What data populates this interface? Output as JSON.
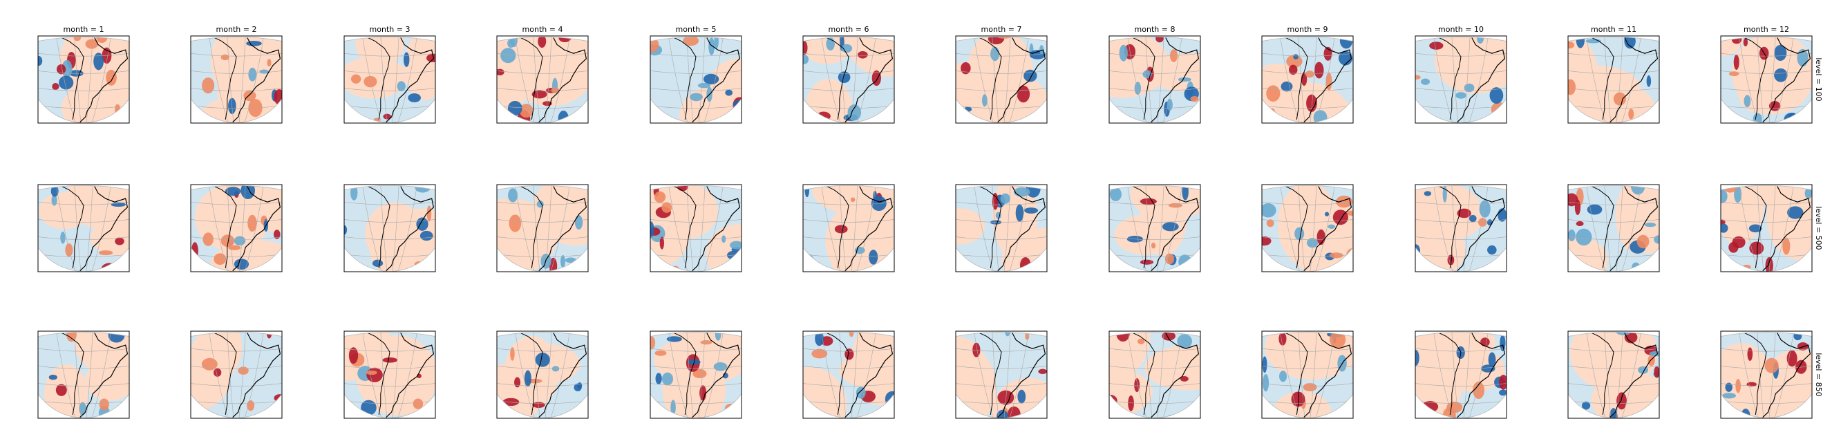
{
  "chart_data": {
    "type": "heatmap",
    "layout": "facet-grid",
    "panel_content": "filled contour anomaly maps over South America (orthographic projection) with coastlines and graticule",
    "colormap": "diverging red-blue (RdBu_r)",
    "colors": {
      "strong_negative": "#2166ac",
      "moderate_negative": "#67a9cf",
      "weak_negative": "#d1e5f0",
      "weak_positive": "#fddbc7",
      "moderate_positive": "#ef8a62",
      "strong_positive": "#b2182b",
      "coastline": "#000000",
      "graticule": "#aaaaaa"
    },
    "columns": {
      "label_prefix": "month = ",
      "labels": [
        "month = 1",
        "month = 2",
        "month = 3",
        "month = 4",
        "month = 5",
        "month = 6",
        "month = 7",
        "month = 8",
        "month = 9",
        "month = 10",
        "month = 11",
        "month = 12"
      ]
    },
    "rows": {
      "label_prefix": "level = ",
      "labels": [
        "level = 100",
        "level = 500",
        "level = 850"
      ]
    }
  }
}
